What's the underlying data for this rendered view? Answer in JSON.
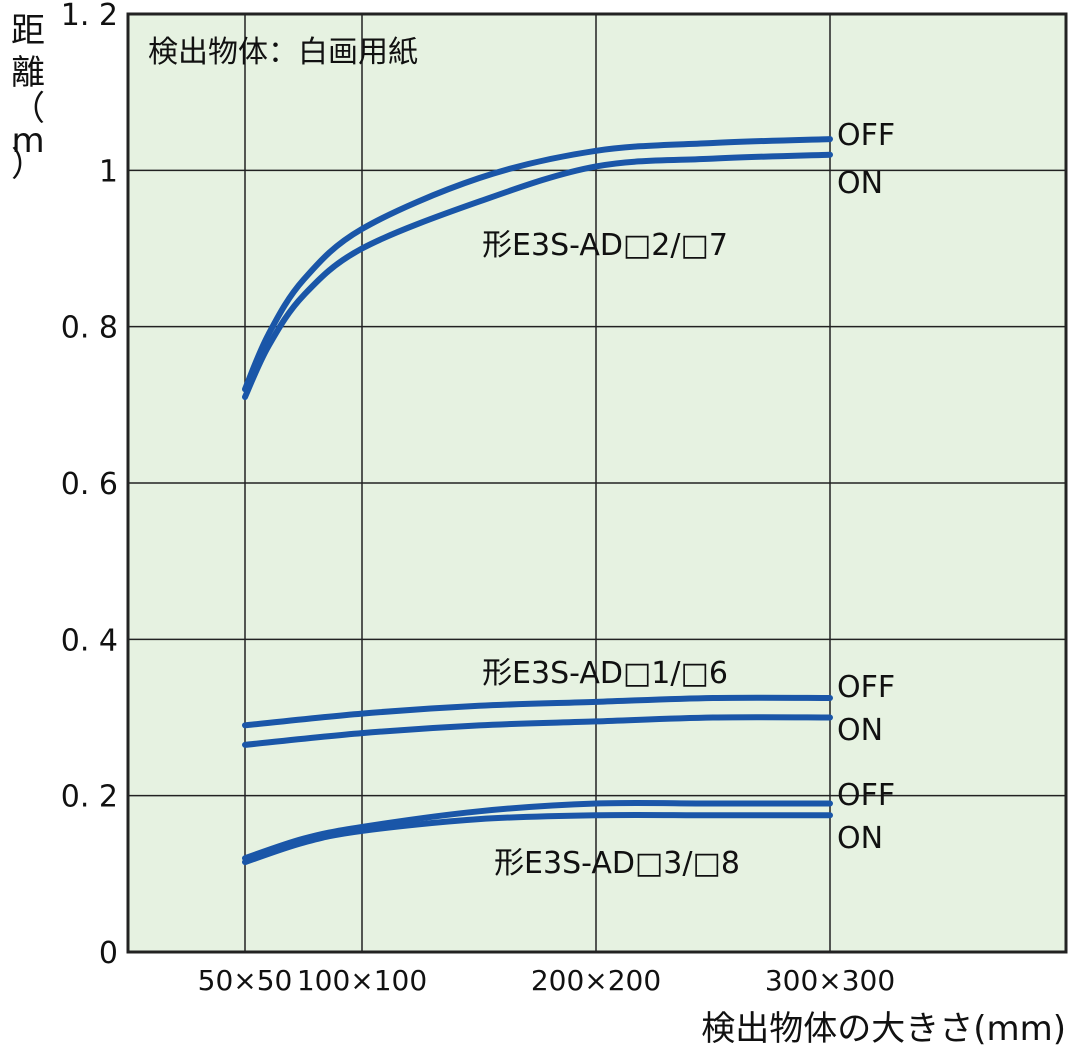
{
  "chart_data": {
    "type": "line",
    "annotation": "検出物体：白画用紙",
    "xlabel": "検出物体の大きさ(mm)",
    "ylabel": "距離（m）",
    "ylabel_chars": [
      "距",
      "離",
      "（",
      "m",
      "）"
    ],
    "ylim": [
      0,
      1.2
    ],
    "yticks": [
      {
        "value": 0,
        "label": "0"
      },
      {
        "value": 0.2,
        "label": "0. 2"
      },
      {
        "value": 0.4,
        "label": "0. 4"
      },
      {
        "value": 0.6,
        "label": "0. 6"
      },
      {
        "value": 0.8,
        "label": "0. 8"
      },
      {
        "value": 1.0,
        "label": "1"
      },
      {
        "value": 1.2,
        "label": "1. 2"
      }
    ],
    "xlim": [
      0,
      350
    ],
    "xticks": [
      {
        "value": 50,
        "label": "50×50"
      },
      {
        "value": 100,
        "label": "100×100"
      },
      {
        "value": 200,
        "label": "200×200"
      },
      {
        "value": 300,
        "label": "300×300"
      }
    ],
    "grid": true,
    "colors": {
      "background": "#e6f2e1",
      "line": "#1a56a8",
      "grid": "#222222"
    },
    "groups": [
      {
        "name": "形E3S-AD□2/□7",
        "series": [
          {
            "state": "OFF",
            "x": [
              50,
              60,
              75,
              100,
              150,
              200,
              250,
              300
            ],
            "y": [
              0.72,
              0.79,
              0.86,
              0.925,
              0.99,
              1.025,
              1.035,
              1.04
            ]
          },
          {
            "state": "ON",
            "x": [
              50,
              60,
              75,
              100,
              150,
              200,
              250,
              300
            ],
            "y": [
              0.71,
              0.775,
              0.84,
              0.9,
              0.96,
              1.005,
              1.015,
              1.02
            ]
          }
        ]
      },
      {
        "name": "形E3S-AD□1/□6",
        "series": [
          {
            "state": "OFF",
            "x": [
              50,
              100,
              150,
              200,
              250,
              300
            ],
            "y": [
              0.29,
              0.305,
              0.315,
              0.32,
              0.325,
              0.325
            ]
          },
          {
            "state": "ON",
            "x": [
              50,
              100,
              150,
              200,
              250,
              300
            ],
            "y": [
              0.265,
              0.28,
              0.29,
              0.295,
              0.3,
              0.3
            ]
          }
        ]
      },
      {
        "name": "形E3S-AD□3/□8",
        "series": [
          {
            "state": "OFF",
            "x": [
              50,
              75,
              100,
              150,
              200,
              250,
              300
            ],
            "y": [
              0.12,
              0.145,
              0.16,
              0.18,
              0.19,
              0.19,
              0.19
            ]
          },
          {
            "state": "ON",
            "x": [
              50,
              75,
              100,
              150,
              200,
              250,
              300
            ],
            "y": [
              0.115,
              0.14,
              0.155,
              0.17,
              0.175,
              0.175,
              0.175
            ]
          }
        ]
      }
    ]
  }
}
